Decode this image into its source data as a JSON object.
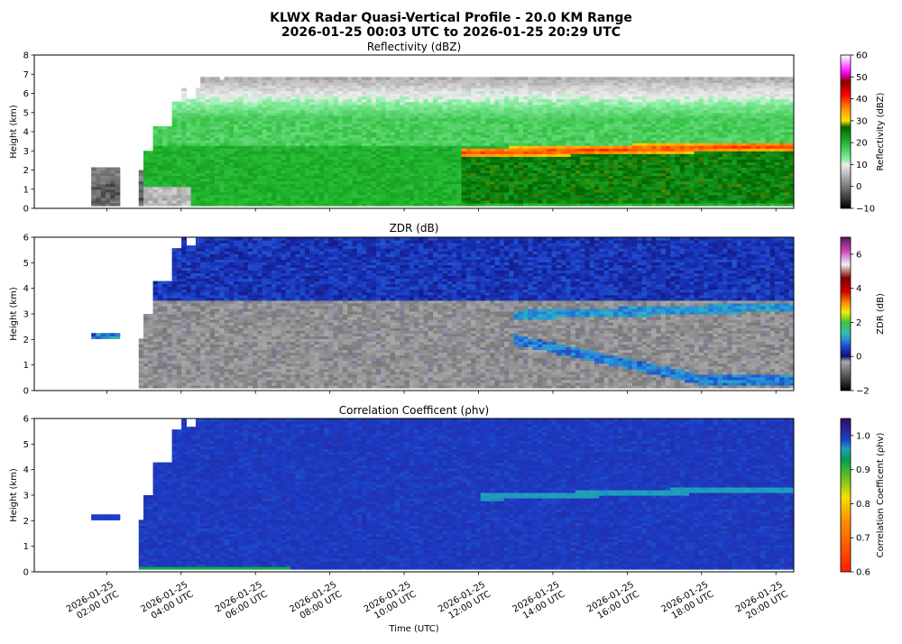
{
  "figure": {
    "title_line1": "KLWX Radar Quasi-Vertical Profile - 20.0 KM Range",
    "title_line2": "2026-01-25 00:03 UTC to 2026-01-25 20:29 UTC",
    "xlabel": "Time (UTC)"
  },
  "chart_data": [
    {
      "type": "heatmap",
      "title": "Reflectivity (dBZ)",
      "ylabel": "Height (km)",
      "ylim": [
        0,
        8
      ],
      "yticks": [
        "0",
        "1",
        "2",
        "3",
        "4",
        "5",
        "6",
        "7",
        "8"
      ],
      "colorbar": {
        "label": "Reflectivity (dBZ)",
        "range": [
          -10,
          60
        ],
        "ticks": [
          "60",
          "50",
          "40",
          "30",
          "20",
          "10",
          "0",
          "−10"
        ],
        "stops": [
          {
            "value": -10,
            "color": "#000000"
          },
          {
            "value": 0,
            "color": "#7a7a7a"
          },
          {
            "value": 10,
            "color": "#eeeeee"
          },
          {
            "value": 12,
            "color": "#8ff0a8"
          },
          {
            "value": 20,
            "color": "#22b830"
          },
          {
            "value": 27,
            "color": "#006400"
          },
          {
            "value": 30,
            "color": "#ffe000"
          },
          {
            "value": 35,
            "color": "#ff9900"
          },
          {
            "value": 42,
            "color": "#ff0000"
          },
          {
            "value": 48,
            "color": "#8b0000"
          },
          {
            "value": 52,
            "color": "#ff00ff"
          },
          {
            "value": 58,
            "color": "#ffc8ff"
          },
          {
            "value": 60,
            "color": "#ffffff"
          }
        ]
      }
    },
    {
      "type": "heatmap",
      "title": "ZDR (dB)",
      "ylabel": "Height (km)",
      "ylim": [
        0,
        6
      ],
      "yticks": [
        "0",
        "1",
        "2",
        "3",
        "4",
        "5",
        "6"
      ],
      "colorbar": {
        "label": "ZDR (dB)",
        "range": [
          -2,
          7
        ],
        "ticks": [
          "6",
          "4",
          "2",
          "0",
          "−2"
        ],
        "stops": [
          {
            "value": -2,
            "color": "#000000"
          },
          {
            "value": -0.3,
            "color": "#a8a8a8"
          },
          {
            "value": 0,
            "color": "#101070"
          },
          {
            "value": 0.5,
            "color": "#1c3cc8"
          },
          {
            "value": 1.0,
            "color": "#2a90d8"
          },
          {
            "value": 1.4,
            "color": "#30c0b0"
          },
          {
            "value": 2.0,
            "color": "#40c040"
          },
          {
            "value": 2.6,
            "color": "#f0f000"
          },
          {
            "value": 3.2,
            "color": "#ff8000"
          },
          {
            "value": 3.8,
            "color": "#d00000"
          },
          {
            "value": 4.6,
            "color": "#800000"
          },
          {
            "value": 5.4,
            "color": "#f0f0f0"
          },
          {
            "value": 6.2,
            "color": "#d040c0"
          },
          {
            "value": 7,
            "color": "#502050"
          }
        ]
      }
    },
    {
      "type": "heatmap",
      "title": "Correlation Coefficent (ρhv)",
      "ylabel": "Height (km)",
      "ylim": [
        0,
        6
      ],
      "yticks": [
        "0",
        "1",
        "2",
        "3",
        "4",
        "5",
        "6"
      ],
      "colorbar": {
        "label": "Correlation Coefficent (ρhv)",
        "range": [
          0.6,
          1.05
        ],
        "ticks": [
          "1.0",
          "0.9",
          "0.8",
          "0.7",
          "0.6"
        ],
        "stops": [
          {
            "value": 0.6,
            "color": "#ff2000"
          },
          {
            "value": 0.75,
            "color": "#ff9000"
          },
          {
            "value": 0.82,
            "color": "#f0e000"
          },
          {
            "value": 0.88,
            "color": "#60c020"
          },
          {
            "value": 0.93,
            "color": "#00a050"
          },
          {
            "value": 0.96,
            "color": "#20a0c0"
          },
          {
            "value": 0.99,
            "color": "#1c3cc8"
          },
          {
            "value": 1.05,
            "color": "#301060"
          }
        ]
      }
    }
  ],
  "xaxis": {
    "ticks": [
      {
        "hour": 2,
        "line1": "2026-01-25",
        "line2": "02:00 UTC"
      },
      {
        "hour": 4,
        "line1": "2026-01-25",
        "line2": "04:00 UTC"
      },
      {
        "hour": 6,
        "line1": "2026-01-25",
        "line2": "06:00 UTC"
      },
      {
        "hour": 8,
        "line1": "2026-01-25",
        "line2": "08:00 UTC"
      },
      {
        "hour": 10,
        "line1": "2026-01-25",
        "line2": "10:00 UTC"
      },
      {
        "hour": 12,
        "line1": "2026-01-25",
        "line2": "12:00 UTC"
      },
      {
        "hour": 14,
        "line1": "2026-01-25",
        "line2": "14:00 UTC"
      },
      {
        "hour": 16,
        "line1": "2026-01-25",
        "line2": "16:00 UTC"
      },
      {
        "hour": 18,
        "line1": "2026-01-25",
        "line2": "18:00 UTC"
      },
      {
        "hour": 20,
        "line1": "2026-01-25",
        "line2": "20:00 UTC"
      }
    ],
    "range_hours": [
      0.05,
      20.48
    ]
  }
}
